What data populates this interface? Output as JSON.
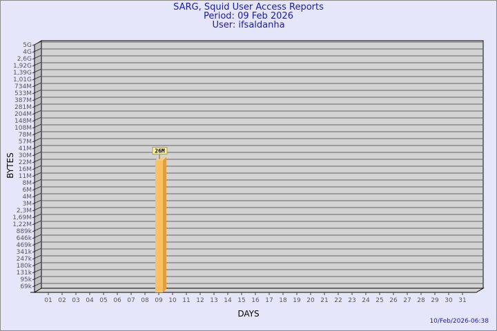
{
  "header": {
    "title": "SARG, Squid User Access Reports",
    "period": "Period: 09 Feb 2026",
    "user": "User: ifsaldanha"
  },
  "timestamp": "10/Feb/2026-06:38",
  "chart_data": {
    "type": "bar",
    "xlabel": "DAYS",
    "ylabel": "BYTES",
    "y_scale": "log",
    "grid": true,
    "categories": [
      "01",
      "02",
      "03",
      "04",
      "05",
      "06",
      "07",
      "08",
      "09",
      "10",
      "11",
      "12",
      "13",
      "14",
      "15",
      "16",
      "17",
      "18",
      "19",
      "20",
      "21",
      "22",
      "23",
      "24",
      "25",
      "26",
      "27",
      "28",
      "29",
      "30",
      "31"
    ],
    "y_ticks": [
      "5G",
      "4G",
      "2,6G",
      "1,92G",
      "1,39G",
      "1,01G",
      "734M",
      "533M",
      "387M",
      "281M",
      "204M",
      "148M",
      "108M",
      "78M",
      "57M",
      "41M",
      "30M",
      "22M",
      "16M",
      "11M",
      "8M",
      "6M",
      "4M",
      "3M",
      "2,3M",
      "1,69M",
      "1,22M",
      "889k",
      "646k",
      "469k",
      "341k",
      "247k",
      "180k",
      "131k",
      "95k",
      "69k"
    ],
    "bars": [
      {
        "category": "09",
        "value": 26000000,
        "label": "26M"
      }
    ],
    "colors": {
      "bar_front": "#fcc060",
      "bar_side": "#e0a040",
      "wall": "#d3d3d3",
      "side_wall": "#c0c0c0",
      "text": "#1a1aa6"
    }
  }
}
